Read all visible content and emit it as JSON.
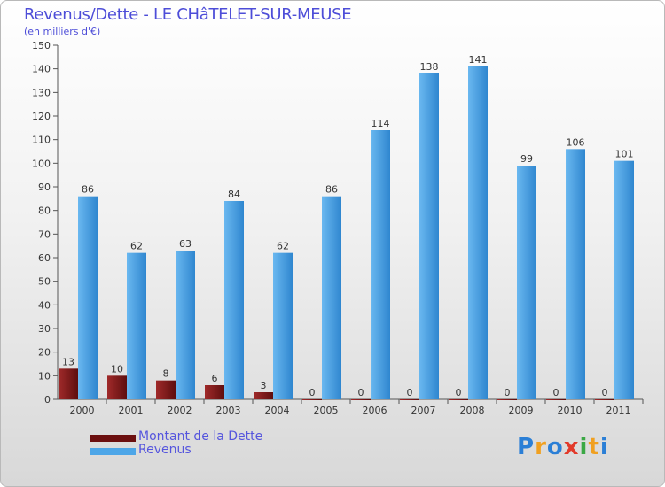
{
  "chart_data": {
    "type": "bar",
    "title": "Revenus/Dette - LE CHâTELET-SUR-MEUSE",
    "subtitle": "(en milliers d'€)",
    "categories": [
      "2000",
      "2001",
      "2002",
      "2003",
      "2004",
      "2005",
      "2006",
      "2007",
      "2008",
      "2009",
      "2010",
      "2011"
    ],
    "series": [
      {
        "name": "Montant de la Dette",
        "values": [
          13,
          10,
          8,
          6,
          3,
          0,
          0,
          0,
          0,
          0,
          0,
          0
        ],
        "color": "#8b1a1a"
      },
      {
        "name": "Revenus",
        "values": [
          86,
          62,
          63,
          84,
          62,
          86,
          114,
          138,
          141,
          99,
          106,
          101
        ],
        "color": "#4da6e8"
      }
    ],
    "ylim": [
      0,
      150
    ],
    "yticks": [
      0,
      10,
      20,
      30,
      40,
      50,
      60,
      70,
      80,
      90,
      100,
      110,
      120,
      130,
      140,
      150
    ],
    "grid": false,
    "legend_position": "bottom-left"
  },
  "logo": {
    "text": "Proxiti",
    "letters": [
      "P",
      "r",
      "o",
      "x",
      "i",
      "t",
      "i"
    ],
    "colors": [
      "#2b7fd6",
      "#f0a020",
      "#2b7fd6",
      "#e23a2a",
      "#3aa845",
      "#f0a020",
      "#2b7fd6"
    ]
  }
}
